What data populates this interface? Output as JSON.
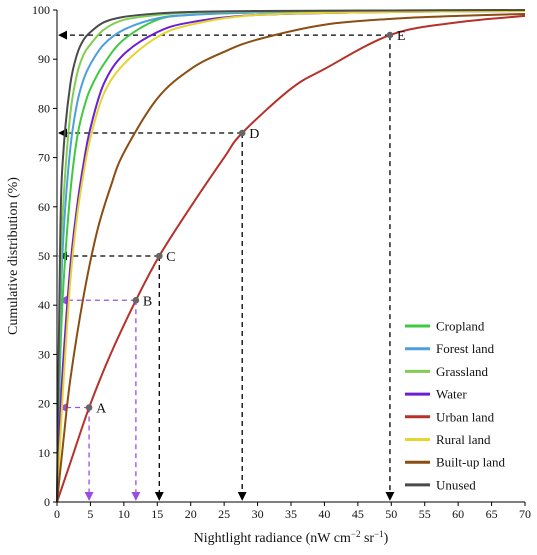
{
  "chart_data": {
    "type": "line",
    "xlabel": "Nightlight radiance (nW cm",
    "xlabel_sup1": "−2",
    "xlabel_mid": " sr",
    "xlabel_sup2": "−1",
    "xlabel_end": ")",
    "ylabel": "Cumulative distribution (%)",
    "xlim": [
      0,
      70
    ],
    "ylim": [
      0,
      100
    ],
    "x_ticks": [
      "0",
      "5",
      "10",
      "15",
      "20",
      "25",
      "30",
      "35",
      "40",
      "45",
      "50",
      "55",
      "60",
      "65",
      "70"
    ],
    "y_ticks": [
      "0",
      "10",
      "20",
      "30",
      "40",
      "50",
      "60",
      "70",
      "80",
      "90",
      "100"
    ],
    "legend_position": "bottom-right",
    "series": [
      {
        "name": "Cropland",
        "color": "#3fc93f",
        "x": [
          0,
          0.5,
          1,
          2,
          3,
          4,
          5,
          7,
          10,
          15,
          20,
          30,
          50,
          70
        ],
        "y": [
          0,
          30,
          45,
          63,
          74,
          80,
          84,
          89,
          94,
          98,
          99,
          99.5,
          99.8,
          99.9
        ]
      },
      {
        "name": "Forest land",
        "color": "#4d9fe0",
        "x": [
          0,
          0.5,
          1,
          2,
          3,
          4,
          5,
          7,
          10,
          15,
          20,
          30,
          50,
          70
        ],
        "y": [
          0,
          38,
          55,
          72,
          81,
          86,
          89,
          93,
          96,
          98.3,
          99,
          99.5,
          99.8,
          99.9
        ]
      },
      {
        "name": "Grassland",
        "color": "#7fce52",
        "x": [
          0,
          0.5,
          1,
          2,
          3,
          4,
          5,
          7,
          10,
          15,
          20,
          30,
          50,
          70
        ],
        "y": [
          0,
          45,
          62,
          79,
          87,
          91,
          93,
          96,
          98,
          99,
          99.5,
          99.7,
          99.9,
          100
        ]
      },
      {
        "name": "Water",
        "color": "#6a1fd6",
        "x": [
          0,
          0.5,
          1,
          2,
          3,
          4,
          5,
          7,
          10,
          15,
          20,
          30,
          50,
          70
        ],
        "y": [
          0,
          18,
          30,
          48,
          60,
          69,
          76,
          85,
          91,
          95.5,
          97.5,
          99,
          99.6,
          99.8
        ]
      },
      {
        "name": "Urban land",
        "color": "#b5312a",
        "x": [
          0,
          2,
          4.8,
          8,
          11.8,
          15.3,
          20,
          25,
          27.7,
          35,
          40,
          50,
          60,
          70
        ],
        "y": [
          0,
          8,
          19.2,
          30,
          41,
          50,
          60,
          70,
          75,
          84,
          88,
          95,
          97.5,
          98.8
        ]
      },
      {
        "name": "Rural land",
        "color": "#e6d430",
        "x": [
          0,
          0.5,
          1,
          2,
          3,
          4,
          5,
          7,
          10,
          15,
          20,
          30,
          50,
          70
        ],
        "y": [
          0,
          13,
          25,
          45,
          58,
          67,
          74,
          83,
          89,
          94.5,
          97,
          99,
          99.6,
          99.8
        ]
      },
      {
        "name": "Built-up land",
        "color": "#8a4d12",
        "x": [
          0,
          1,
          2,
          4,
          6,
          8,
          10,
          15,
          20,
          25,
          30,
          40,
          50,
          60,
          70
        ],
        "y": [
          0,
          13,
          25,
          42,
          55,
          64,
          71,
          82,
          88,
          91.5,
          94,
          97,
          98.2,
          98.8,
          99.2
        ]
      },
      {
        "name": "Unused",
        "color": "#4a4a4a",
        "x": [
          0,
          0.5,
          1,
          2,
          3,
          4,
          5,
          7,
          10,
          15,
          20,
          30,
          50,
          70
        ],
        "y": [
          0,
          55,
          72,
          85,
          91,
          94,
          95.5,
          97.5,
          98.6,
          99.3,
          99.6,
          99.8,
          99.9,
          100
        ]
      }
    ],
    "annotations": [
      {
        "label": "A",
        "x": 4.8,
        "y": 19.2,
        "color": "#9b4de0"
      },
      {
        "label": "B",
        "x": 11.8,
        "y": 41,
        "color": "#9b4de0"
      },
      {
        "label": "C",
        "x": 15.3,
        "y": 50,
        "color": "#000000"
      },
      {
        "label": "D",
        "x": 27.7,
        "y": 75,
        "color": "#000000"
      },
      {
        "label": "E",
        "x": 49.8,
        "y": 94.9,
        "color": "#000000"
      }
    ]
  }
}
